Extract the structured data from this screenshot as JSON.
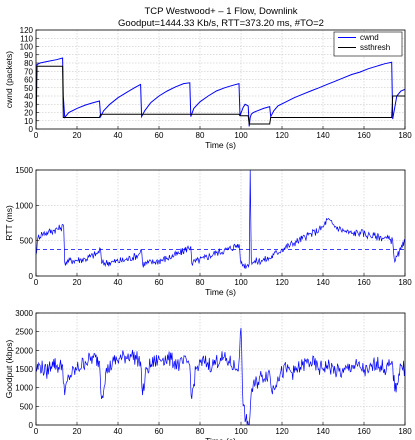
{
  "chart_data": [
    {
      "type": "line",
      "title": "TCP Westwood+ – 1 Flow, Downlink",
      "subtitle": "Goodput=1444.33 Kb/s, RTT=373.20 ms, #TO=2",
      "xlabel": "Time (s)",
      "ylabel": "cwnd (packets)",
      "xlim": [
        0,
        180
      ],
      "ylim": [
        0,
        120
      ],
      "xticks": [
        "0",
        "20",
        "40",
        "60",
        "80",
        "100",
        "120",
        "140",
        "160",
        "180"
      ],
      "yticks": [
        "0",
        "10",
        "20",
        "30",
        "40",
        "50",
        "60",
        "70",
        "80",
        "90",
        "100",
        "110",
        "120"
      ],
      "grid": true,
      "legend": "top-right",
      "series": [
        {
          "name": "cwnd",
          "color": "#0000ff",
          "x": [
            0,
            0.5,
            2,
            6,
            10,
            13,
            13.3,
            14,
            16,
            20,
            24,
            28,
            31,
            31.5,
            33,
            36,
            40,
            44,
            48,
            51,
            51.5,
            53,
            56,
            60,
            64,
            68,
            72,
            75,
            75.5,
            77,
            80,
            84,
            88,
            92,
            96,
            99,
            99.5,
            101,
            102,
            103.5,
            104,
            104.5,
            105,
            106,
            108,
            111,
            114,
            114.5,
            116,
            118,
            122,
            126,
            130,
            134,
            138,
            142,
            146,
            150,
            154,
            158,
            162,
            166,
            170,
            173.5,
            174,
            176,
            178,
            180
          ],
          "y": [
            42,
            78,
            80,
            82,
            84,
            86,
            40,
            14,
            20,
            25,
            29,
            32,
            34,
            15,
            22,
            30,
            38,
            44,
            50,
            54,
            15,
            22,
            32,
            40,
            46,
            51,
            55,
            56,
            15,
            25,
            33,
            40,
            46,
            50,
            53,
            55,
            16,
            26,
            30,
            28,
            3,
            14,
            18,
            20,
            22,
            25,
            27,
            15,
            22,
            28,
            33,
            38,
            42,
            46,
            50,
            54,
            58,
            62,
            66,
            69,
            73,
            76,
            79,
            81,
            12,
            40,
            46,
            48
          ]
        },
        {
          "name": "ssthresh",
          "color": "#000000",
          "x": [
            0,
            0.5,
            13,
            13.3,
            31,
            31.5,
            51,
            51.5,
            75,
            75.5,
            99,
            99.5,
            103.5,
            104,
            114,
            114.5,
            173.5,
            174,
            180
          ],
          "y": [
            0,
            76,
            76,
            14,
            14,
            18,
            18,
            18,
            18,
            18,
            18,
            16,
            16,
            6,
            6,
            14,
            14,
            40,
            40
          ]
        }
      ]
    },
    {
      "type": "line",
      "xlabel": "Time (s)",
      "ylabel": "RTT (ms)",
      "xlim": [
        0,
        180
      ],
      "ylim": [
        0,
        1500
      ],
      "xticks": [
        "0",
        "20",
        "40",
        "60",
        "80",
        "100",
        "120",
        "140",
        "160",
        "180"
      ],
      "yticks": [
        "0",
        "500",
        "1000",
        "1500"
      ],
      "grid": true,
      "mean_line": 373.2,
      "series": [
        {
          "color": "#0000ff",
          "x": [
            0,
            1,
            3,
            6,
            9,
            12,
            13.5,
            14,
            18,
            24,
            30,
            31.5,
            32,
            38,
            44,
            50,
            51.5,
            52,
            58,
            64,
            70,
            75.5,
            76,
            82,
            88,
            94,
            99,
            100,
            101,
            103,
            104,
            104.5,
            105,
            106,
            110,
            114,
            116,
            120,
            126,
            132,
            136,
            140,
            142,
            146,
            150,
            154,
            158,
            162,
            166,
            170,
            174,
            175,
            178,
            180
          ],
          "y": [
            300,
            550,
            600,
            620,
            650,
            680,
            700,
            200,
            220,
            240,
            320,
            380,
            180,
            200,
            230,
            300,
            370,
            170,
            200,
            250,
            320,
            420,
            180,
            250,
            330,
            380,
            450,
            180,
            160,
            150,
            170,
            1500,
            220,
            200,
            220,
            250,
            300,
            380,
            470,
            560,
            620,
            690,
            800,
            700,
            640,
            600,
            620,
            580,
            560,
            540,
            500,
            200,
            380,
            480
          ]
        }
      ]
    },
    {
      "type": "line",
      "xlabel": "Time (s)",
      "ylabel": "Goodput (kbps)",
      "xlim": [
        0,
        180
      ],
      "ylim": [
        0,
        3000
      ],
      "xticks": [
        "0",
        "20",
        "40",
        "60",
        "80",
        "100",
        "120",
        "140",
        "160",
        "180"
      ],
      "yticks": [
        "0",
        "500",
        "1000",
        "1500",
        "2000",
        "2500",
        "3000"
      ],
      "grid": true,
      "series": [
        {
          "color": "#0000ff",
          "x": [
            0,
            2,
            5,
            8,
            11,
            13,
            14,
            16,
            20,
            24,
            28,
            31,
            32,
            34,
            38,
            42,
            46,
            50,
            51,
            52,
            54,
            58,
            62,
            66,
            70,
            74,
            75,
            76,
            78,
            82,
            86,
            90,
            94,
            98,
            99,
            100,
            101,
            103,
            104,
            105,
            107,
            110,
            114,
            115,
            118,
            122,
            126,
            130,
            134,
            138,
            142,
            146,
            150,
            154,
            158,
            162,
            166,
            170,
            174,
            175,
            178,
            180
          ],
          "y": [
            1500,
            1600,
            1400,
            1700,
            1550,
            1600,
            800,
            1300,
            1500,
            1700,
            1800,
            1700,
            700,
            1400,
            1700,
            1800,
            1900,
            1750,
            1700,
            800,
            1500,
            1700,
            1800,
            1750,
            1600,
            1700,
            1600,
            700,
            1500,
            1700,
            1600,
            1800,
            1700,
            1500,
            1700,
            2600,
            500,
            0,
            0,
            900,
            1100,
            1300,
            1400,
            900,
            1300,
            1500,
            1400,
            1600,
            1700,
            1500,
            1600,
            1450,
            1400,
            1600,
            1550,
            1400,
            1700,
            1500,
            1600,
            900,
            1600,
            1500
          ]
        }
      ]
    }
  ]
}
